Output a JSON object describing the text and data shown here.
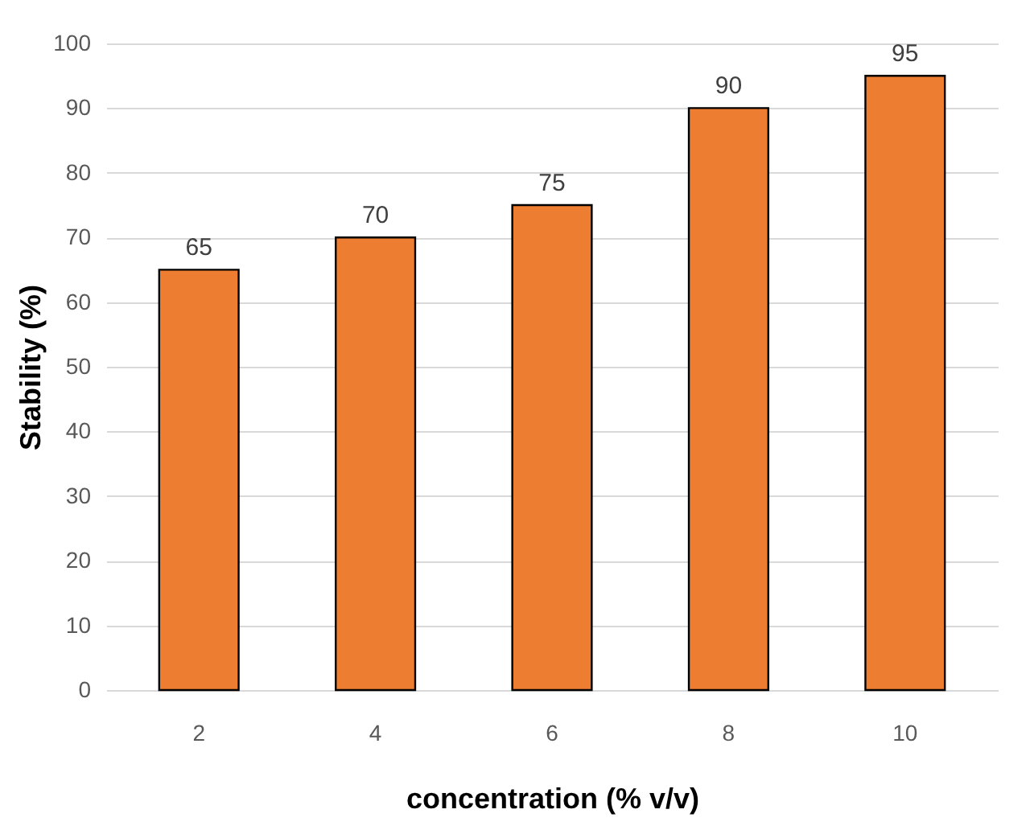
{
  "chart_data": {
    "type": "bar",
    "xlabel": "concentration (% v/v)",
    "ylabel": "Stability (%)",
    "categories": [
      "2",
      "4",
      "6",
      "8",
      "10"
    ],
    "values": [
      65,
      70,
      75,
      90,
      95
    ],
    "color": "#ed7d31",
    "ylim": [
      0,
      100
    ],
    "yticks": [
      0,
      10,
      20,
      30,
      40,
      50,
      60,
      70,
      80,
      90,
      100
    ],
    "grid": "y",
    "data_labels": true
  }
}
